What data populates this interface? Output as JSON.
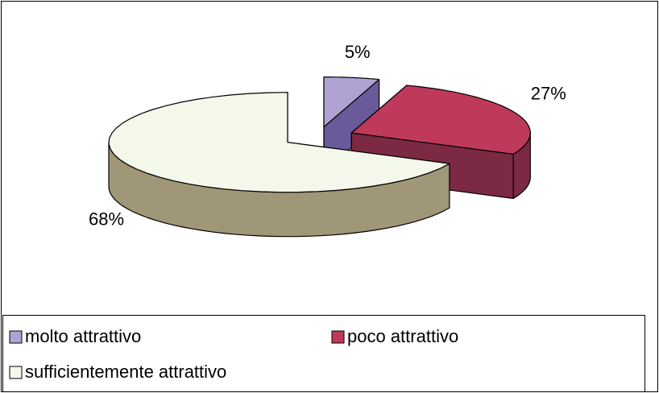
{
  "chart_data": {
    "type": "pie3d",
    "categories": [
      "molto attrattivo",
      "poco attrattivo",
      "sufficientemente attrattivo"
    ],
    "values": [
      5,
      27,
      68
    ],
    "value_labels": [
      "5%",
      "27%",
      "68%"
    ],
    "colors": [
      "#b0a3d4",
      "#bf3a5a",
      "#f3f8ea"
    ],
    "side_colors": [
      "#6a5a9a",
      "#7c2a44",
      "#a09778"
    ],
    "legend": "bottom"
  }
}
